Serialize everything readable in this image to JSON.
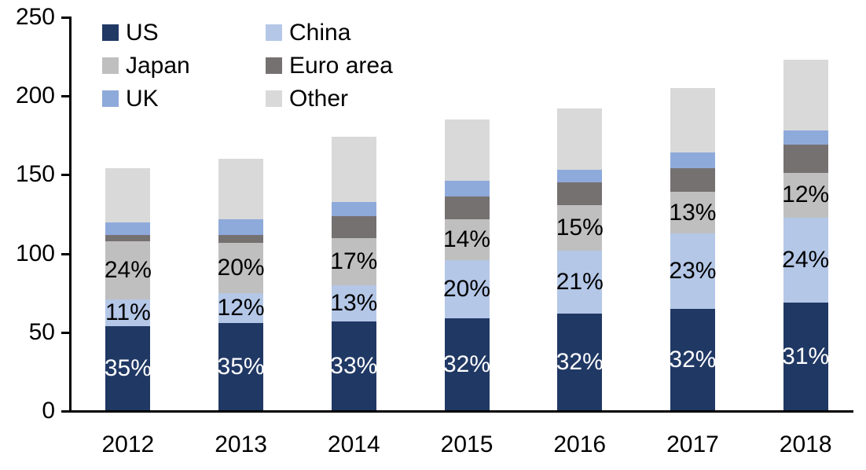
{
  "chart_data": {
    "type": "bar",
    "variant": "stacked-column",
    "title": "",
    "categories": [
      "2012",
      "2013",
      "2014",
      "2015",
      "2016",
      "2017",
      "2018"
    ],
    "series": [
      {
        "name": "US",
        "color": "#203864",
        "values": [
          54,
          56,
          57,
          59,
          62,
          65,
          69
        ],
        "labels": [
          "35%",
          "35%",
          "33%",
          "32%",
          "32%",
          "32%",
          "31%"
        ],
        "label_color": "#ffffff"
      },
      {
        "name": "China",
        "color": "#b4c7e7",
        "values": [
          17,
          19,
          23,
          37,
          40,
          48,
          54
        ],
        "labels": [
          "11%",
          "12%",
          "13%",
          "20%",
          "21%",
          "23%",
          "24%"
        ],
        "label_color": "#000000"
      },
      {
        "name": "Japan",
        "color": "#bfbfbf",
        "values": [
          37,
          32,
          30,
          26,
          29,
          26,
          28
        ],
        "labels": [
          "24%",
          "20%",
          "17%",
          "14%",
          "15%",
          "13%",
          "12%"
        ],
        "label_color": "#000000"
      },
      {
        "name": "Euro area",
        "color": "#767171",
        "values": [
          4,
          5,
          14,
          14,
          14,
          15,
          18
        ],
        "labels": null,
        "label_color": null
      },
      {
        "name": "UK",
        "color": "#8eaadb",
        "values": [
          8,
          10,
          9,
          10,
          8,
          10,
          9
        ],
        "labels": null,
        "label_color": null
      },
      {
        "name": "Other",
        "color": "#d9d9d9",
        "values": [
          34,
          38,
          41,
          39,
          39,
          41,
          45
        ],
        "labels": null,
        "label_color": null
      }
    ],
    "totals": [
      154,
      160,
      174,
      185,
      192,
      205,
      223
    ],
    "y_axis": {
      "min": 0,
      "max": 250,
      "step": 50,
      "tick_labels": [
        "0",
        "50",
        "100",
        "150",
        "200",
        "250"
      ]
    },
    "legend": {
      "position": "top-left",
      "columns": 2,
      "entries": [
        "US",
        "China",
        "Japan",
        "Euro area",
        "UK",
        "Other"
      ]
    },
    "grid": false,
    "axis_color": "#000000",
    "background_color": "#ffffff"
  }
}
